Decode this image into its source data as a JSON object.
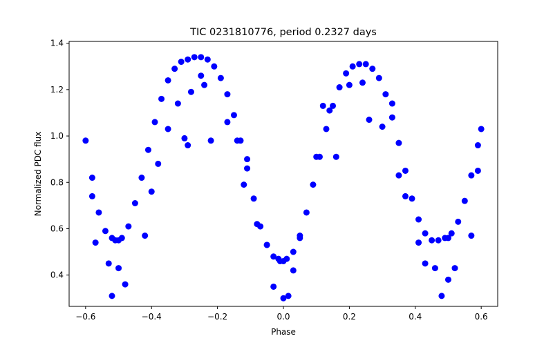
{
  "chart_data": {
    "type": "scatter",
    "title": "TIC 0231810776, period 0.2327 days",
    "xlabel": "Phase",
    "ylabel": "Normalized PDC flux",
    "xlim": [
      -0.65,
      0.65
    ],
    "ylim": [
      0.265,
      1.408
    ],
    "x_ticks": [
      -0.6,
      -0.4,
      -0.2,
      0.0,
      0.2,
      0.4,
      0.6
    ],
    "x_tick_labels": [
      "−0.6",
      "−0.4",
      "−0.2",
      "0.0",
      "0.2",
      "0.4",
      "0.6"
    ],
    "y_ticks": [
      0.4,
      0.6,
      0.8,
      1.0,
      1.2,
      1.4
    ],
    "y_tick_labels": [
      "0.4",
      "0.6",
      "0.8",
      "1.0",
      "1.2",
      "1.4"
    ],
    "grid": false,
    "legend": "none",
    "marker_color": "#0000ff",
    "series": [
      {
        "x": [
          -0.6,
          -0.58,
          -0.56,
          -0.54,
          -0.52,
          -0.51,
          -0.5,
          -0.49,
          -0.47,
          -0.45,
          -0.43,
          -0.41,
          -0.39,
          -0.37,
          -0.35,
          -0.33,
          -0.31,
          -0.29,
          -0.27,
          -0.25,
          -0.23,
          -0.21,
          -0.19,
          -0.17,
          -0.15,
          -0.13,
          -0.11,
          -0.09,
          -0.07,
          -0.05,
          -0.03,
          -0.01,
          0.0,
          0.01,
          0.03,
          0.05,
          0.07,
          0.09,
          0.11,
          0.13,
          0.15,
          0.17,
          0.19,
          0.21,
          0.23,
          0.25,
          0.27,
          0.29,
          0.31,
          0.33,
          0.35,
          0.37,
          0.39,
          0.41,
          0.43,
          0.45,
          0.47,
          0.49,
          0.5,
          0.51,
          0.53,
          0.55,
          0.57,
          0.59,
          0.6,
          -0.58,
          -0.57,
          -0.53,
          -0.52,
          -0.5,
          -0.48,
          -0.42,
          -0.4,
          -0.38,
          -0.35,
          -0.32,
          -0.3,
          -0.29,
          -0.28,
          -0.25,
          -0.24,
          -0.22,
          -0.17,
          -0.14,
          -0.12,
          -0.11,
          -0.08,
          -0.05,
          -0.03,
          -0.015,
          0.0,
          0.015,
          0.03,
          0.05,
          0.1,
          0.12,
          0.14,
          0.16,
          0.2,
          0.24,
          0.26,
          0.3,
          0.33,
          0.35,
          0.37,
          0.41,
          0.43,
          0.46,
          0.48,
          0.5,
          0.52,
          0.57,
          0.59
        ],
        "y": [
          0.98,
          0.82,
          0.67,
          0.59,
          0.56,
          0.55,
          0.55,
          0.56,
          0.61,
          0.71,
          0.82,
          0.94,
          1.06,
          1.16,
          1.24,
          1.29,
          1.32,
          1.33,
          1.34,
          1.34,
          1.33,
          1.3,
          1.25,
          1.18,
          1.09,
          0.98,
          0.86,
          0.73,
          0.61,
          0.53,
          0.48,
          0.46,
          0.46,
          0.47,
          0.5,
          0.57,
          0.67,
          0.79,
          0.91,
          1.03,
          1.13,
          1.21,
          1.27,
          1.3,
          1.31,
          1.31,
          1.29,
          1.25,
          1.18,
          1.08,
          0.97,
          0.85,
          0.73,
          0.64,
          0.58,
          0.55,
          0.55,
          0.56,
          0.56,
          0.58,
          0.63,
          0.72,
          0.83,
          0.96,
          1.03,
          0.74,
          0.54,
          0.45,
          0.31,
          0.43,
          0.36,
          0.57,
          0.76,
          0.88,
          1.03,
          1.14,
          0.99,
          0.96,
          1.19,
          1.26,
          1.22,
          0.98,
          1.06,
          0.98,
          0.79,
          0.9,
          0.62,
          0.53,
          0.35,
          0.47,
          0.3,
          0.31,
          0.42,
          0.56,
          0.91,
          1.13,
          1.11,
          0.91,
          1.22,
          1.23,
          1.07,
          1.04,
          1.14,
          0.83,
          0.74,
          0.54,
          0.45,
          0.43,
          0.31,
          0.38,
          0.43,
          0.57,
          0.85
        ]
      }
    ]
  }
}
